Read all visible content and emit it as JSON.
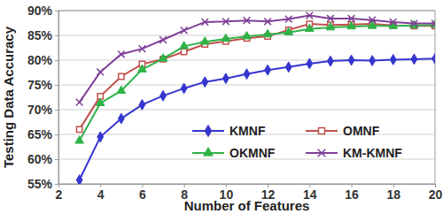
{
  "chart_data": {
    "type": "line",
    "x_label": "Number of Features",
    "y_label": "Testing Data Accuracy",
    "x": [
      3,
      4,
      5,
      6,
      7,
      8,
      9,
      10,
      11,
      12,
      13,
      14,
      15,
      16,
      17,
      18,
      19,
      20
    ],
    "series": [
      {
        "name": "KMNF",
        "color": "#3535d0",
        "marker": "diamond",
        "values": [
          55.8,
          64.5,
          68.2,
          71,
          72.8,
          74.3,
          75.6,
          76.3,
          77.2,
          78,
          78.6,
          79.3,
          79.8,
          80,
          79.9,
          80.1,
          80.2,
          80.3
        ]
      },
      {
        "name": "OMNF",
        "color": "#c0504d",
        "marker": "square",
        "values": [
          66,
          72.7,
          76.7,
          79.2,
          80.2,
          81.7,
          83.2,
          83.8,
          84.4,
          84.8,
          86.1,
          87.3,
          87.1,
          87.2,
          87.3,
          87,
          86.9,
          86.9
        ]
      },
      {
        "name": "OKMNF",
        "color": "#2fb347",
        "marker": "triangle",
        "values": [
          63.7,
          71.3,
          73.8,
          78.1,
          80.3,
          82.8,
          83.7,
          84.3,
          84.8,
          85.2,
          85.6,
          86.3,
          86.6,
          86.8,
          86.9,
          86.9,
          87,
          87.1
        ]
      },
      {
        "name": "KM-KMNF",
        "color": "#7f3f98",
        "marker": "x",
        "values": [
          71.5,
          77.6,
          81.2,
          82.3,
          84.1,
          86,
          87.7,
          87.8,
          88,
          87.8,
          88.3,
          89,
          88.4,
          88.4,
          88.1,
          87.7,
          87.4,
          87.4
        ]
      }
    ],
    "xlim": [
      2,
      20
    ],
    "xticks": [
      2,
      4,
      6,
      8,
      10,
      12,
      14,
      16,
      18,
      20
    ],
    "ylim": [
      55,
      90
    ],
    "yticks": [
      {
        "value": 55,
        "label": "55%"
      },
      {
        "value": 60,
        "label": "60%"
      },
      {
        "value": 65,
        "label": "65%"
      },
      {
        "value": 70,
        "label": "70%"
      },
      {
        "value": 75,
        "label": "75%"
      },
      {
        "value": 80,
        "label": "80%"
      },
      {
        "value": 85,
        "label": "85%"
      },
      {
        "value": 90,
        "label": "90%"
      }
    ],
    "grid": true,
    "legend": "lower right"
  }
}
